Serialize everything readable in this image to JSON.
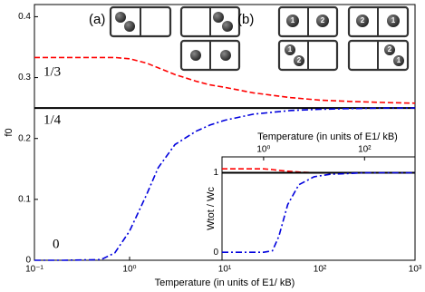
{
  "chart_data": [
    {
      "type": "line",
      "ylabel": "f0",
      "xlabel": "Temperature (in units of E1/ kB)",
      "xscale": "log",
      "xlim": [
        0.1,
        1000
      ],
      "ylim": [
        0,
        0.42
      ],
      "xticks": [
        {
          "value": 0.1,
          "label": "10⁻¹"
        },
        {
          "value": 1,
          "label": "10⁰"
        },
        {
          "value": 10,
          "label": "10¹"
        },
        {
          "value": 100,
          "label": "10²"
        },
        {
          "value": 1000,
          "label": "10³"
        }
      ],
      "yticks": [
        0,
        0.1,
        0.2,
        0.3,
        0.4
      ],
      "x": [
        0.1,
        0.2,
        0.5,
        0.7,
        1,
        1.5,
        2,
        3,
        5,
        7,
        10,
        20,
        50,
        100,
        200,
        500,
        1000
      ],
      "series": [
        {
          "color": "#ff0000",
          "style": "dashed",
          "values": [
            0.333,
            0.333,
            0.333,
            0.333,
            0.331,
            0.324,
            0.316,
            0.305,
            0.294,
            0.288,
            0.284,
            0.275,
            0.267,
            0.263,
            0.261,
            0.259,
            0.258
          ]
        },
        {
          "color": "#000000",
          "style": "solid",
          "values": [
            0.25,
            0.25,
            0.25,
            0.25,
            0.25,
            0.25,
            0.25,
            0.25,
            0.25,
            0.25,
            0.25,
            0.25,
            0.25,
            0.25,
            0.25,
            0.25,
            0.25
          ]
        },
        {
          "color": "#0000dd",
          "style": "dashdot",
          "values": [
            0,
            0,
            0.001,
            0.012,
            0.048,
            0.107,
            0.152,
            0.19,
            0.212,
            0.222,
            0.23,
            0.24,
            0.246,
            0.248,
            0.249,
            0.25,
            0.25
          ]
        }
      ],
      "annotations": [
        "1/3",
        "1/4",
        "0"
      ]
    },
    {
      "type": "line",
      "ylabel": "Wtot / Wc",
      "xlabel": "Temperature (in units of E1/ kB)",
      "xscale": "log",
      "xlim": [
        0.15,
        1000
      ],
      "ylim": [
        -0.1,
        1.2
      ],
      "xticks": [
        {
          "value": 1,
          "label": "10⁰"
        },
        {
          "value": 100,
          "label": "10²"
        }
      ],
      "yticks": [
        0,
        1
      ],
      "x": [
        0.15,
        0.5,
        1,
        1.5,
        2,
        3,
        5,
        10,
        20,
        100,
        1000
      ],
      "series": [
        {
          "color": "#ff0000",
          "style": "dashed",
          "values": [
            1.05,
            1.05,
            1.05,
            1.04,
            1.03,
            1.02,
            1.01,
            1,
            1,
            1,
            1
          ]
        },
        {
          "color": "#000000",
          "style": "solid",
          "values": [
            1,
            1,
            1,
            1,
            1,
            1,
            1,
            1,
            1,
            1,
            1
          ]
        },
        {
          "color": "#0000dd",
          "style": "dashdot",
          "values": [
            0,
            0,
            0,
            0.02,
            0.2,
            0.6,
            0.85,
            0.95,
            0.98,
            1,
            1
          ]
        }
      ]
    }
  ],
  "diagram": {
    "labels": [
      "(a)",
      "(b)"
    ],
    "balls": [
      [
        "1",
        "2"
      ],
      [
        "2",
        "1"
      ],
      [
        "1",
        "2"
      ],
      [
        "2",
        "1"
      ]
    ]
  }
}
